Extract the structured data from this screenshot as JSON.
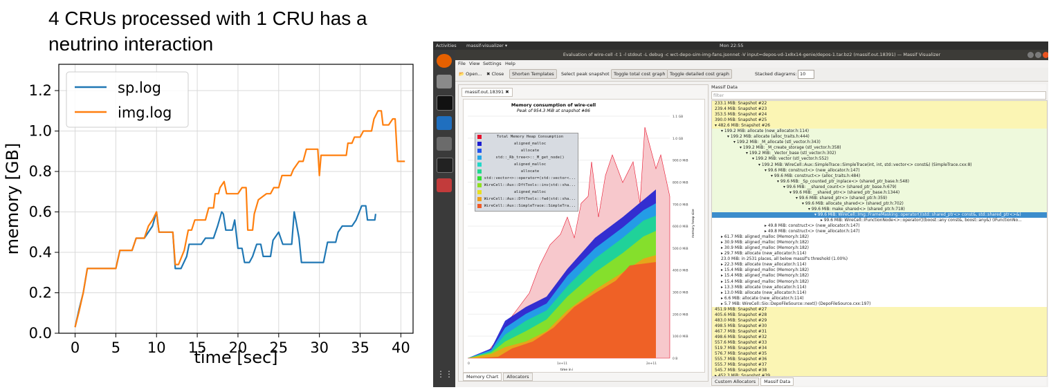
{
  "slide_title": "4 CRUs processed with 1 CRU has a neutrino interaction",
  "chart_data": {
    "type": "line",
    "xlabel": "time [sec]",
    "ylabel": "memory [GB]",
    "xlim": [
      -2,
      41.5
    ],
    "ylim": [
      0,
      1.33
    ],
    "xticks": [
      0,
      5,
      10,
      15,
      20,
      25,
      30,
      35,
      40
    ],
    "yticks": [
      0.0,
      0.2,
      0.4,
      0.6,
      0.8,
      1.0,
      1.2
    ],
    "xtick_labels": [
      "0",
      "5",
      "10",
      "15",
      "20",
      "25",
      "30",
      "35",
      "40"
    ],
    "ytick_labels": [
      "0.0",
      "0.2",
      "0.4",
      "0.6",
      "0.8",
      "1.0",
      "1.2"
    ],
    "grid": true,
    "legend_position": "top-left",
    "series": [
      {
        "name": "sp.log",
        "color": "#1f77b4",
        "points": [
          [
            0,
            0.03
          ],
          [
            0.5,
            0.12
          ],
          [
            1,
            0.2
          ],
          [
            1.5,
            0.32
          ],
          [
            3,
            0.32
          ],
          [
            5,
            0.32
          ],
          [
            5.5,
            0.41
          ],
          [
            7,
            0.41
          ],
          [
            7.5,
            0.47
          ],
          [
            8.5,
            0.47
          ],
          [
            9,
            0.5
          ],
          [
            9.5,
            0.53
          ],
          [
            10,
            0.6
          ],
          [
            10.3,
            0.5
          ],
          [
            12,
            0.5
          ],
          [
            12.3,
            0.32
          ],
          [
            13,
            0.32
          ],
          [
            13.7,
            0.38
          ],
          [
            14,
            0.44
          ],
          [
            15.5,
            0.44
          ],
          [
            16,
            0.47
          ],
          [
            17,
            0.47
          ],
          [
            17.5,
            0.53
          ],
          [
            18,
            0.6
          ],
          [
            18.2,
            0.59
          ],
          [
            18.5,
            0.51
          ],
          [
            19.3,
            0.51
          ],
          [
            19.6,
            0.56
          ],
          [
            20,
            0.42
          ],
          [
            20.5,
            0.42
          ],
          [
            20.8,
            0.35
          ],
          [
            21.4,
            0.35
          ],
          [
            21.8,
            0.38
          ],
          [
            22.3,
            0.44
          ],
          [
            22.8,
            0.44
          ],
          [
            23.1,
            0.38
          ],
          [
            24,
            0.38
          ],
          [
            24.3,
            0.46
          ],
          [
            25,
            0.5
          ],
          [
            25.5,
            0.44
          ],
          [
            26.6,
            0.44
          ],
          [
            26.9,
            0.6
          ],
          [
            27.1,
            0.56
          ],
          [
            27.5,
            0.47
          ],
          [
            27.8,
            0.35
          ],
          [
            30.5,
            0.35
          ],
          [
            31,
            0.45
          ],
          [
            32,
            0.45
          ],
          [
            32.3,
            0.5
          ],
          [
            32.8,
            0.53
          ],
          [
            34,
            0.53
          ],
          [
            34.5,
            0.56
          ],
          [
            35.2,
            0.63
          ],
          [
            35.7,
            0.63
          ],
          [
            35.9,
            0.56
          ],
          [
            36.8,
            0.56
          ],
          [
            36.9,
            0.59
          ]
        ]
      },
      {
        "name": "img.log",
        "color": "#ff7f0e",
        "points": [
          [
            0,
            0.03
          ],
          [
            0.5,
            0.11
          ],
          [
            1,
            0.2
          ],
          [
            1.5,
            0.32
          ],
          [
            3,
            0.32
          ],
          [
            5,
            0.32
          ],
          [
            5.5,
            0.41
          ],
          [
            7,
            0.41
          ],
          [
            7.5,
            0.47
          ],
          [
            8.5,
            0.47
          ],
          [
            9,
            0.53
          ],
          [
            9.5,
            0.56
          ],
          [
            10,
            0.6
          ],
          [
            10.3,
            0.5
          ],
          [
            12,
            0.5
          ],
          [
            12.3,
            0.34
          ],
          [
            12.7,
            0.34
          ],
          [
            13.4,
            0.41
          ],
          [
            13.9,
            0.51
          ],
          [
            14.3,
            0.51
          ],
          [
            14.7,
            0.56
          ],
          [
            16,
            0.56
          ],
          [
            16.4,
            0.62
          ],
          [
            17,
            0.62
          ],
          [
            17.2,
            0.69
          ],
          [
            17.6,
            0.69
          ],
          [
            17.8,
            0.72
          ],
          [
            18.3,
            0.75
          ],
          [
            18.6,
            0.69
          ],
          [
            20,
            0.69
          ],
          [
            20.5,
            0.72
          ],
          [
            21,
            0.72
          ],
          [
            21.2,
            0.51
          ],
          [
            21.8,
            0.51
          ],
          [
            22,
            0.59
          ],
          [
            22.5,
            0.66
          ],
          [
            23.5,
            0.69
          ],
          [
            24,
            0.69
          ],
          [
            24.4,
            0.72
          ],
          [
            25,
            0.72
          ],
          [
            25.4,
            0.78
          ],
          [
            26.5,
            0.78
          ],
          [
            26.8,
            0.81
          ],
          [
            27.5,
            0.85
          ],
          [
            28,
            0.85
          ],
          [
            28.4,
            0.91
          ],
          [
            29.8,
            0.91
          ],
          [
            30,
            0.78
          ],
          [
            30.2,
            0.88
          ],
          [
            33.3,
            0.88
          ],
          [
            33.5,
            0.94
          ],
          [
            34,
            0.94
          ],
          [
            34.3,
            0.97
          ],
          [
            35,
            0.97
          ],
          [
            35.4,
            1.0
          ],
          [
            36.4,
            1.0
          ],
          [
            36.7,
            1.06
          ],
          [
            37.2,
            1.1
          ],
          [
            37.6,
            1.1
          ],
          [
            37.8,
            1.03
          ],
          [
            38.5,
            1.03
          ],
          [
            39,
            1.06
          ],
          [
            39.3,
            1.06
          ],
          [
            39.6,
            0.85
          ],
          [
            40.5,
            0.85
          ]
        ]
      }
    ]
  },
  "massif": {
    "topbar": {
      "activities": "Activities",
      "app": "massif-visualizer ▾",
      "clock": "Mon 22:55"
    },
    "window_title": "Evaluation of wire-cell -t 1 -l stdout -L debug -c wct-depo-sim-img-fans.jsonnet -V input=depos-vd-1x8x14-genie/depos-1.tar.bz2 (massif.out.18391) — Massif Visualizer",
    "menu": [
      "File",
      "View",
      "Settings",
      "Help"
    ],
    "toolbar": {
      "open": "Open...",
      "close": "Close",
      "shorten": "Shorten Templates",
      "select_peak": "Select peak snapshot",
      "toggle_total": "Toggle total cost graph",
      "toggle_detailed": "Toggle detailed cost graph",
      "stacked_label": "Stacked diagrams:",
      "stacked_value": "10"
    },
    "file_tab": "massif.out.18391 ✖",
    "chart_title": "Memory consumption of wire-cell",
    "chart_subtitle": "Peak of 954.3 MiB at snapshot #86",
    "axis_x_label": "time in i",
    "axis_y_label": "memory heap size",
    "x_ticks": [
      "0",
      "1e+11",
      "2e+11"
    ],
    "y_ticks": [
      "1.1 GB",
      "1.0 GB",
      "900.0 MiB",
      "800.0 MiB",
      "700.0 MiB",
      "600.0 MiB",
      "500.0 MiB",
      "400.0 MiB",
      "300.0 MiB",
      "200.0 MiB",
      "100.0 MiB",
      "0 B"
    ],
    "legend": [
      {
        "label": "Total Memory Heap Consumption",
        "color": "#e8102a"
      },
      {
        "label": "aligned_malloc",
        "color": "#1d1dd0"
      },
      {
        "label": "allocate",
        "color": "#2255ee"
      },
      {
        "label": "std::_Rb_tree<>::_M_get_node()",
        "color": "#22a8e8"
      },
      {
        "label": "aligned_malloc",
        "color": "#22d8c8"
      },
      {
        "label": "allocate",
        "color": "#20d890"
      },
      {
        "label": "std::vector<>::operator=(std::vector<...",
        "color": "#30e030"
      },
      {
        "label": "WireCell::Aux::DftTools::inv(std::sha...",
        "color": "#90e020"
      },
      {
        "label": "aligned_malloc",
        "color": "#e8e020"
      },
      {
        "label": "WireCell::Aux::DftTools::fwd(std::sha...",
        "color": "#f0a018"
      },
      {
        "label": "WireCell::Aux::SimpleTrace::SimpleTra...",
        "color": "#f05a28"
      }
    ],
    "bottom_tabs": [
      "Memory Chart",
      "Allocators"
    ],
    "data_header": "Massif Data",
    "filter_placeholder": "filter",
    "tree": [
      {
        "text": "233.1 MiB: Snapshot #22",
        "indent": 0,
        "style": "yellow"
      },
      {
        "text": "239.4 MiB: Snapshot #23",
        "indent": 0,
        "style": "yellow"
      },
      {
        "text": "353.5 MiB: Snapshot #24",
        "indent": 0,
        "style": "yellow"
      },
      {
        "text": "390.0 MiB: Snapshot #25",
        "indent": 0,
        "style": "yellow"
      },
      {
        "text": "▾ 482.6 MiB: Snapshot #26",
        "indent": 0,
        "style": "yellow"
      },
      {
        "text": "▾ 199.2 MiB: allocate (new_allocator.h:114)",
        "indent": 1,
        "style": "green"
      },
      {
        "text": "▾ 199.2 MiB: allocate (alloc_traits.h:444)",
        "indent": 2,
        "style": "green"
      },
      {
        "text": "▾ 199.2 MiB: _M_allocate (stl_vector.h:343)",
        "indent": 3,
        "style": "green"
      },
      {
        "text": "▾ 199.2 MiB: _M_create_storage (stl_vector.h:358)",
        "indent": 4,
        "style": "green"
      },
      {
        "text": "▾ 199.2 MiB: _Vector_base (stl_vector.h:302)",
        "indent": 5,
        "style": "green"
      },
      {
        "text": "▾ 199.2 MiB: vector (stl_vector.h:552)",
        "indent": 6,
        "style": "green"
      },
      {
        "text": "▾ 199.2 MiB: WireCell::Aux::SimpleTrace::SimpleTrace(int, int, std::vector<> const&) (SimpleTrace.cxx:8)",
        "indent": 7,
        "style": "green"
      },
      {
        "text": "▾ 99.6 MiB: construct<> (new_allocator.h:147)",
        "indent": 8,
        "style": "green"
      },
      {
        "text": "▾ 99.6 MiB: construct<> (alloc_traits.h:484)",
        "indent": 9,
        "style": "green"
      },
      {
        "text": "▾ 99.6 MiB: _Sp_counted_ptr_inplace<> (shared_ptr_base.h:548)",
        "indent": 10,
        "style": "green"
      },
      {
        "text": "▾ 99.6 MiB: __shared_count<> (shared_ptr_base.h:679)",
        "indent": 11,
        "style": "green"
      },
      {
        "text": "▾ 99.6 MiB: __shared_ptr<> (shared_ptr_base.h:1344)",
        "indent": 12,
        "style": "green"
      },
      {
        "text": "▾ 99.6 MiB: shared_ptr<> (shared_ptr.h:359)",
        "indent": 13,
        "style": "green"
      },
      {
        "text": "▾ 99.6 MiB: allocate_shared<> (shared_ptr.h:702)",
        "indent": 14,
        "style": "green"
      },
      {
        "text": "▾ 99.6 MiB: make_shared<> (shared_ptr.h:718)",
        "indent": 15,
        "style": "green"
      },
      {
        "text": "▾ 99.6 MiB: WireCell::Img::FrameMasking::operator()(std::shared_ptr<> const&, std::shared_ptr<>&)",
        "indent": 16,
        "style": "sel"
      },
      {
        "text": "▸ 99.6 MiB: WireCell::IFunctionNode<>::operator()(boost::any const&, boost::any&) (IFunctionNo...",
        "indent": 17,
        "style": "white"
      },
      {
        "text": "▸ 49.8 MiB: construct<> (new_allocator.h:147)",
        "indent": 8,
        "style": "white"
      },
      {
        "text": "▸ 49.8 MiB: construct<> (new_allocator.h:147)",
        "indent": 8,
        "style": "white"
      },
      {
        "text": "▸ 61.7 MiB: aligned_malloc (Memory.h:182)",
        "indent": 1,
        "style": "white"
      },
      {
        "text": "▸ 30.9 MiB: aligned_malloc (Memory.h:182)",
        "indent": 1,
        "style": "white"
      },
      {
        "text": "▸ 30.9 MiB: aligned_malloc (Memory.h:182)",
        "indent": 1,
        "style": "white"
      },
      {
        "text": "▸ 29.7 MiB: allocate (new_allocator.h:114)",
        "indent": 1,
        "style": "white"
      },
      {
        "text": "23.0 MiB: in 2531 places, all below massif's threshold (1.00%)",
        "indent": 1,
        "style": "white"
      },
      {
        "text": "▸ 22.3 MiB: allocate (new_allocator.h:114)",
        "indent": 1,
        "style": "white"
      },
      {
        "text": "▸ 15.4 MiB: aligned_malloc (Memory.h:182)",
        "indent": 1,
        "style": "white"
      },
      {
        "text": "▸ 15.4 MiB: aligned_malloc (Memory.h:182)",
        "indent": 1,
        "style": "white"
      },
      {
        "text": "▸ 15.4 MiB: aligned_malloc (Memory.h:182)",
        "indent": 1,
        "style": "white"
      },
      {
        "text": "▸ 13.3 MiB: allocate (new_allocator.h:114)",
        "indent": 1,
        "style": "white"
      },
      {
        "text": "▸ 13.0 MiB: allocate (new_allocator.h:114)",
        "indent": 1,
        "style": "white"
      },
      {
        "text": "▸ 6.6 MiB: allocate (new_allocator.h:114)",
        "indent": 1,
        "style": "white"
      },
      {
        "text": "▸ 5.7 MiB: WireCell::Sio::DepoFileSource::next() (DepoFileSource.cxx:197)",
        "indent": 1,
        "style": "white"
      },
      {
        "text": "451.9 MiB: Snapshot #27",
        "indent": 0,
        "style": "yellow"
      },
      {
        "text": "405.6 MiB: Snapshot #28",
        "indent": 0,
        "style": "yellow"
      },
      {
        "text": "483.0 MiB: Snapshot #29",
        "indent": 0,
        "style": "yellow"
      },
      {
        "text": "498.5 MiB: Snapshot #30",
        "indent": 0,
        "style": "yellow"
      },
      {
        "text": "467.7 MiB: Snapshot #31",
        "indent": 0,
        "style": "yellow"
      },
      {
        "text": "498.6 MiB: Snapshot #32",
        "indent": 0,
        "style": "yellow"
      },
      {
        "text": "557.6 MiB: Snapshot #33",
        "indent": 0,
        "style": "yellow"
      },
      {
        "text": "519.7 MiB: Snapshot #34",
        "indent": 0,
        "style": "yellow"
      },
      {
        "text": "576.7 MiB: Snapshot #35",
        "indent": 0,
        "style": "yellow"
      },
      {
        "text": "555.7 MiB: Snapshot #36",
        "indent": 0,
        "style": "yellow"
      },
      {
        "text": "555.7 MiB: Snapshot #37",
        "indent": 0,
        "style": "yellow"
      },
      {
        "text": "545.7 MiB: Snapshot #38",
        "indent": 0,
        "style": "yellow"
      },
      {
        "text": "▸ 452.3 MiB: Snapshot #39",
        "indent": 0,
        "style": "yellow"
      }
    ],
    "data_tabs": [
      "Custom Allocators",
      "Massif Data"
    ]
  }
}
